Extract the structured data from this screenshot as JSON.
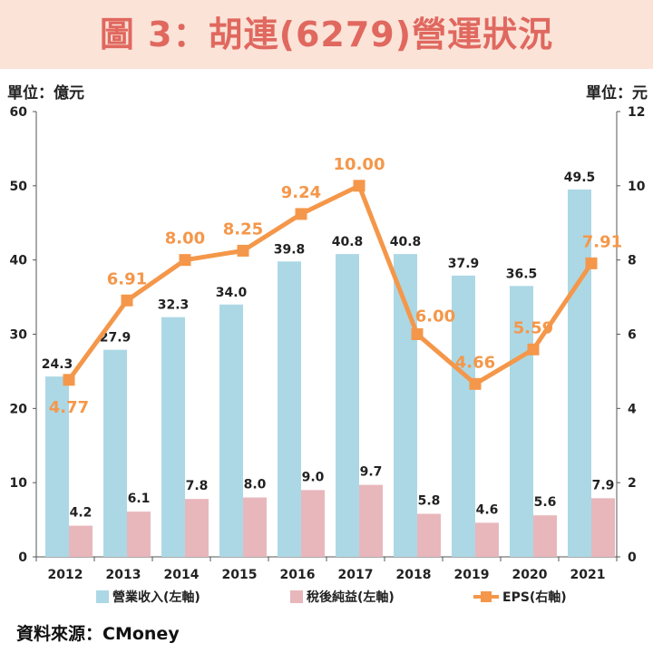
{
  "header": {
    "title": "圖 3：胡連(6279)營運狀況"
  },
  "units": {
    "left": "單位：億元",
    "right": "單位：元"
  },
  "source": "資料來源：CMoney",
  "colors": {
    "revenue": "#acd8e5",
    "net_income": "#e8b7bb",
    "eps": "#f4974a",
    "eps_label": "#f4974a",
    "title": "#e0685f"
  },
  "chart_data": {
    "type": "bar",
    "title": "圖 3：胡連(6279)營運狀況",
    "categories": [
      "2012",
      "2013",
      "2014",
      "2015",
      "2016",
      "2017",
      "2018",
      "2019",
      "2020",
      "2021"
    ],
    "series": [
      {
        "name": "營業收入(左軸)",
        "type": "bar",
        "axis": "left",
        "values": [
          24.3,
          27.9,
          32.3,
          34.0,
          39.8,
          40.8,
          40.8,
          37.9,
          36.5,
          49.5
        ],
        "labels": [
          "24.3",
          "27.9",
          "32.3",
          "34.0",
          "39.8",
          "40.8",
          "40.8",
          "37.9",
          "36.5",
          "49.5"
        ]
      },
      {
        "name": "稅後純益(左軸)",
        "type": "bar",
        "axis": "left",
        "values": [
          4.2,
          6.1,
          7.8,
          8.0,
          9.0,
          9.7,
          5.8,
          4.6,
          5.6,
          7.9
        ],
        "labels": [
          "4.2",
          "6.1",
          "7.8",
          "8.0",
          "9.0",
          "9.7",
          "5.8",
          "4.6",
          "5.6",
          "7.9"
        ]
      },
      {
        "name": "EPS(右軸)",
        "type": "line",
        "axis": "right",
        "values": [
          4.77,
          6.91,
          8.0,
          8.25,
          9.24,
          10.0,
          6.0,
          4.66,
          5.59,
          7.91
        ],
        "labels": [
          "4.77",
          "6.91",
          "8.00",
          "8.25",
          "9.24",
          "10.00",
          "6.00",
          "4.66",
          "5.59",
          "7.91"
        ]
      }
    ],
    "left_axis": {
      "range": [
        0,
        60
      ],
      "ticks": [
        "0",
        "10",
        "20",
        "30",
        "40",
        "50",
        "60"
      ]
    },
    "right_axis": {
      "range": [
        0,
        12
      ],
      "ticks": [
        "0",
        "2",
        "4",
        "6",
        "8",
        "10",
        "12"
      ]
    },
    "legend_position": "bottom"
  }
}
